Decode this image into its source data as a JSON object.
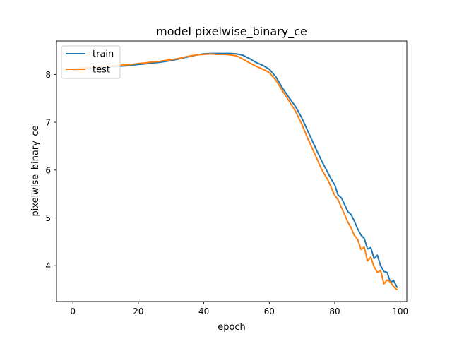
{
  "chart_data": {
    "type": "line",
    "title": "model pixelwise_binary_ce",
    "xlabel": "epoch",
    "ylabel": "pixelwise_binary_ce",
    "xlim": [
      -5,
      102
    ],
    "ylim": [
      3.25,
      8.7
    ],
    "xticks": [
      0,
      20,
      40,
      60,
      80,
      100
    ],
    "yticks": [
      4,
      5,
      6,
      7,
      8
    ],
    "grid": false,
    "legend_position": "top-left",
    "series": [
      {
        "name": "train",
        "color": "#1f77b4",
        "x": [
          0,
          2,
          4,
          6,
          8,
          10,
          12,
          14,
          16,
          18,
          20,
          22,
          24,
          26,
          28,
          30,
          32,
          34,
          36,
          38,
          40,
          42,
          44,
          46,
          48,
          50,
          52,
          54,
          56,
          58,
          60,
          62,
          64,
          66,
          68,
          70,
          72,
          74,
          76,
          78,
          79,
          80,
          81,
          82,
          83,
          84,
          85,
          86,
          87,
          88,
          89,
          90,
          91,
          92,
          93,
          94,
          95,
          96,
          97,
          98,
          99
        ],
        "y": [
          8.09,
          8.11,
          8.12,
          8.13,
          8.14,
          8.15,
          8.16,
          8.17,
          8.18,
          8.19,
          8.21,
          8.22,
          8.24,
          8.25,
          8.27,
          8.29,
          8.32,
          8.35,
          8.38,
          8.41,
          8.43,
          8.44,
          8.44,
          8.44,
          8.44,
          8.43,
          8.4,
          8.33,
          8.25,
          8.19,
          8.11,
          7.95,
          7.72,
          7.52,
          7.33,
          7.08,
          6.78,
          6.48,
          6.19,
          5.93,
          5.8,
          5.69,
          5.48,
          5.42,
          5.28,
          5.13,
          5.07,
          4.93,
          4.77,
          4.64,
          4.57,
          4.35,
          4.38,
          4.15,
          4.22,
          4.0,
          3.88,
          3.86,
          3.65,
          3.69,
          3.55
        ]
      },
      {
        "name": "test",
        "color": "#ff7f0e",
        "x": [
          0,
          2,
          4,
          6,
          8,
          10,
          12,
          14,
          16,
          18,
          20,
          22,
          24,
          26,
          28,
          30,
          32,
          34,
          36,
          38,
          40,
          42,
          44,
          46,
          48,
          50,
          52,
          54,
          56,
          58,
          60,
          62,
          64,
          66,
          68,
          70,
          72,
          74,
          76,
          78,
          79,
          80,
          81,
          82,
          83,
          84,
          85,
          86,
          87,
          88,
          89,
          90,
          91,
          92,
          93,
          94,
          95,
          96,
          97,
          98,
          99
        ],
        "y": [
          8.11,
          8.13,
          8.14,
          8.15,
          8.16,
          8.17,
          8.18,
          8.19,
          8.2,
          8.21,
          8.23,
          8.24,
          8.26,
          8.27,
          8.29,
          8.31,
          8.33,
          8.36,
          8.39,
          8.41,
          8.42,
          8.43,
          8.42,
          8.42,
          8.41,
          8.39,
          8.32,
          8.24,
          8.17,
          8.11,
          8.04,
          7.88,
          7.66,
          7.45,
          7.23,
          6.95,
          6.62,
          6.32,
          6.01,
          5.78,
          5.62,
          5.47,
          5.38,
          5.22,
          5.07,
          4.91,
          4.79,
          4.63,
          4.55,
          4.34,
          4.39,
          4.1,
          4.18,
          3.98,
          3.86,
          3.9,
          3.62,
          3.7,
          3.66,
          3.56,
          3.5
        ]
      }
    ]
  }
}
